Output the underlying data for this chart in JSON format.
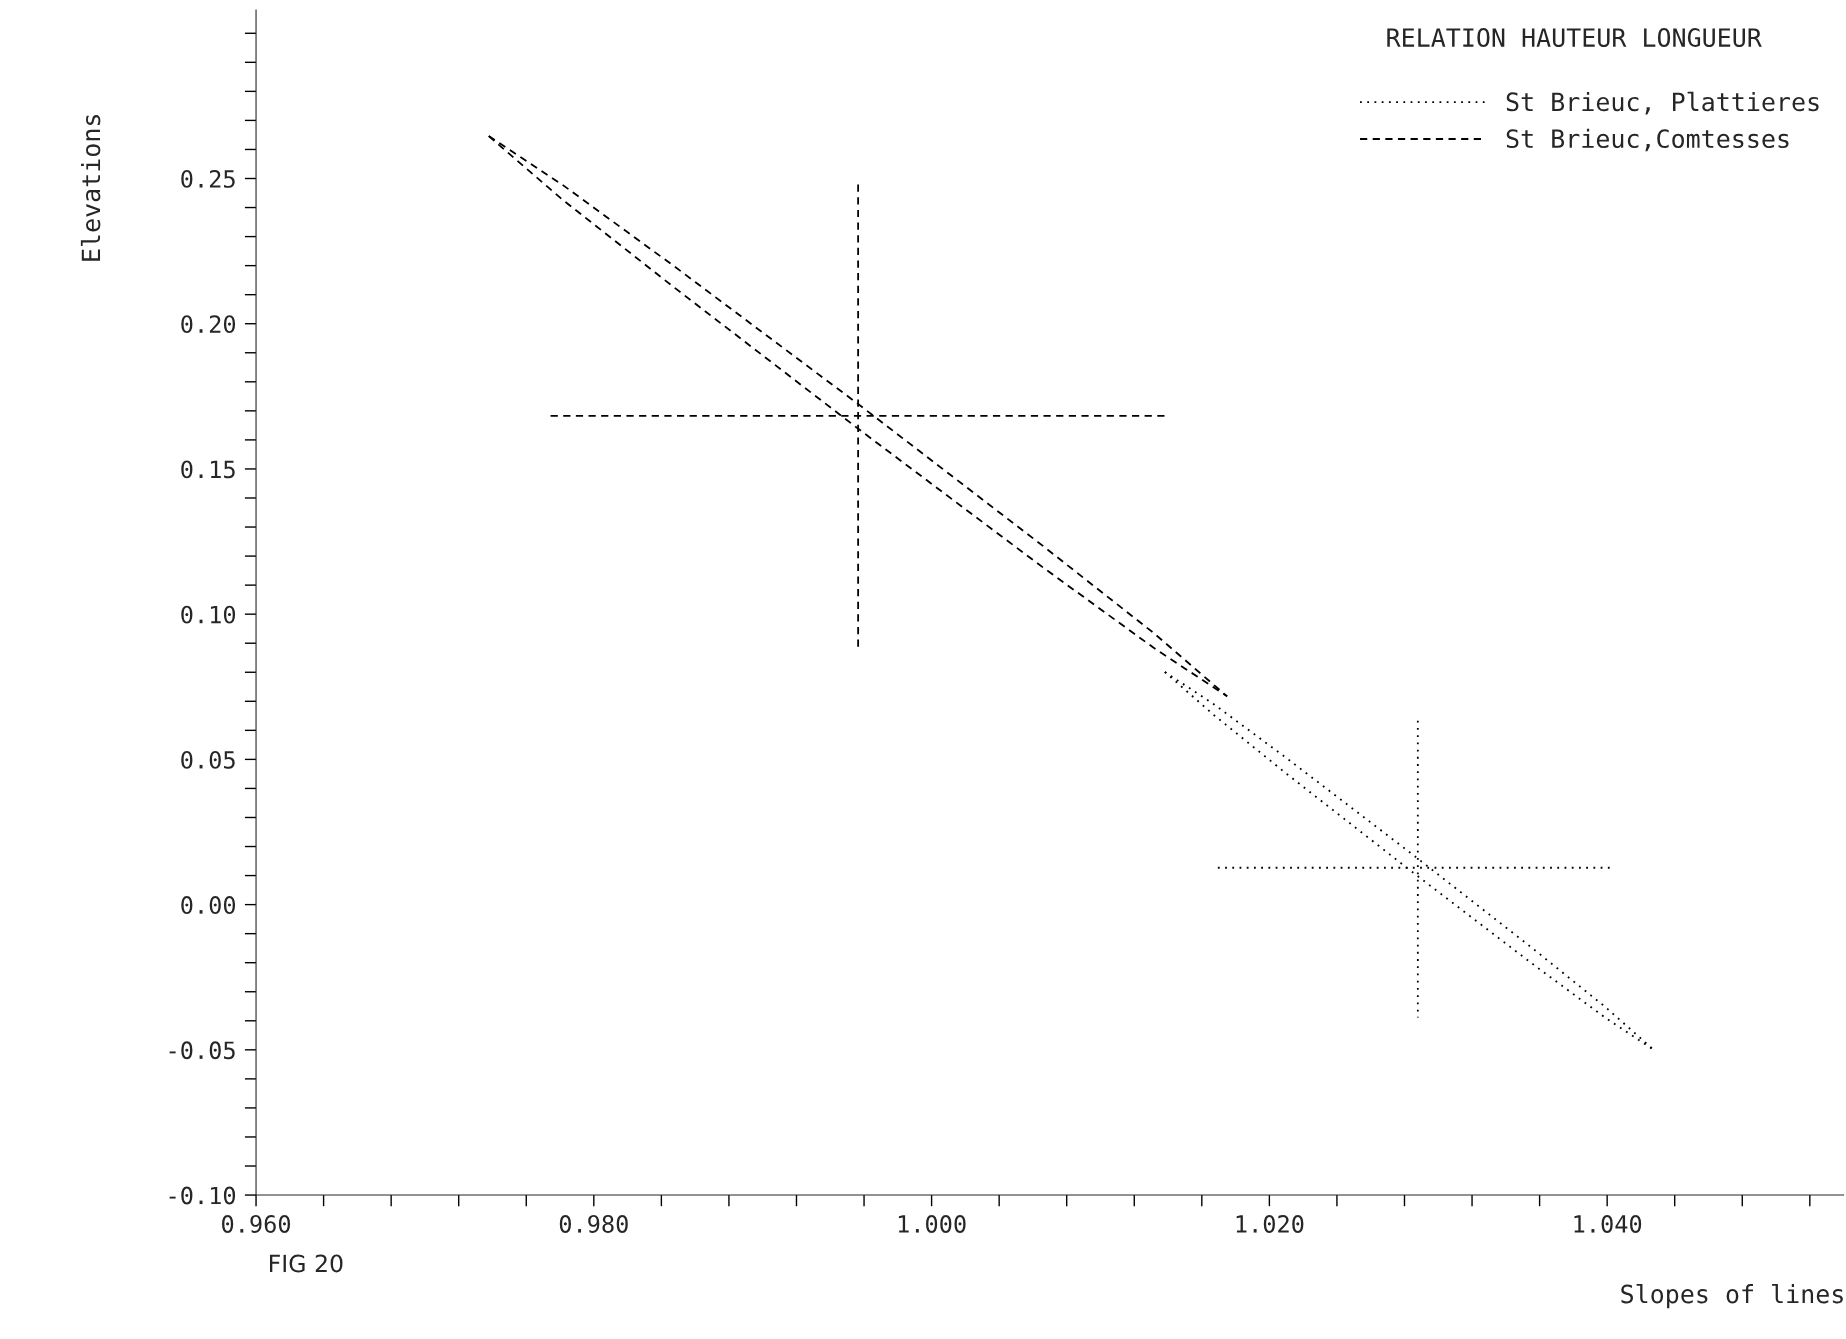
{
  "chart_data": {
    "type": "line",
    "title": "RELATION HAUTEUR LONGUEUR",
    "xlabel": "Slopes of lines",
    "ylabel": "Elevations",
    "annotations": [
      "FIG 20"
    ],
    "xlim": [
      0.96,
      1.054
    ],
    "ylim": [
      -0.1,
      0.308
    ],
    "xticks": [
      {
        "value": 0.96,
        "label": "0.960"
      },
      {
        "value": 0.964,
        "label": null
      },
      {
        "value": 0.968,
        "label": null
      },
      {
        "value": 0.972,
        "label": null
      },
      {
        "value": 0.976,
        "label": null
      },
      {
        "value": 0.98,
        "label": "0.980"
      },
      {
        "value": 0.984,
        "label": null
      },
      {
        "value": 0.988,
        "label": null
      },
      {
        "value": 0.992,
        "label": null
      },
      {
        "value": 0.996,
        "label": null
      },
      {
        "value": 1.0,
        "label": "1.000"
      },
      {
        "value": 1.004,
        "label": null
      },
      {
        "value": 1.008,
        "label": null
      },
      {
        "value": 1.012,
        "label": null
      },
      {
        "value": 1.016,
        "label": null
      },
      {
        "value": 1.02,
        "label": "1.020"
      },
      {
        "value": 1.024,
        "label": null
      },
      {
        "value": 1.028,
        "label": null
      },
      {
        "value": 1.032,
        "label": null
      },
      {
        "value": 1.036,
        "label": null
      },
      {
        "value": 1.04,
        "label": "1.040"
      },
      {
        "value": 1.044,
        "label": null
      },
      {
        "value": 1.048,
        "label": null
      },
      {
        "value": 1.052,
        "label": null
      }
    ],
    "yticks": [
      {
        "value": -0.1,
        "label": "-0.10"
      },
      {
        "value": -0.09,
        "label": null
      },
      {
        "value": -0.08,
        "label": null
      },
      {
        "value": -0.07,
        "label": null
      },
      {
        "value": -0.06,
        "label": null
      },
      {
        "value": -0.05,
        "label": "-0.05"
      },
      {
        "value": -0.04,
        "label": null
      },
      {
        "value": -0.03,
        "label": null
      },
      {
        "value": -0.02,
        "label": null
      },
      {
        "value": -0.01,
        "label": null
      },
      {
        "value": 0.0,
        "label": "0.00"
      },
      {
        "value": 0.01,
        "label": null
      },
      {
        "value": 0.02,
        "label": null
      },
      {
        "value": 0.03,
        "label": null
      },
      {
        "value": 0.04,
        "label": null
      },
      {
        "value": 0.05,
        "label": "0.05"
      },
      {
        "value": 0.06,
        "label": null
      },
      {
        "value": 0.07,
        "label": null
      },
      {
        "value": 0.08,
        "label": null
      },
      {
        "value": 0.09,
        "label": null
      },
      {
        "value": 0.1,
        "label": "0.10"
      },
      {
        "value": 0.11,
        "label": null
      },
      {
        "value": 0.12,
        "label": null
      },
      {
        "value": 0.13,
        "label": null
      },
      {
        "value": 0.14,
        "label": null
      },
      {
        "value": 0.15,
        "label": "0.15"
      },
      {
        "value": 0.16,
        "label": null
      },
      {
        "value": 0.17,
        "label": null
      },
      {
        "value": 0.18,
        "label": null
      },
      {
        "value": 0.19,
        "label": null
      },
      {
        "value": 0.2,
        "label": "0.20"
      },
      {
        "value": 0.21,
        "label": null
      },
      {
        "value": 0.22,
        "label": null
      },
      {
        "value": 0.23,
        "label": null
      },
      {
        "value": 0.24,
        "label": null
      },
      {
        "value": 0.25,
        "label": "0.25"
      },
      {
        "value": 0.26,
        "label": null
      },
      {
        "value": 0.27,
        "label": null
      },
      {
        "value": 0.28,
        "label": null
      },
      {
        "value": 0.29,
        "label": null
      },
      {
        "value": 0.3,
        "label": null
      }
    ],
    "legend": "top right",
    "series": [
      {
        "name": "St Brieuc, Plattieres",
        "color": "#000000",
        "line_style": "dotted",
        "x": [
          1.01381,
          1.01671,
          1.02105,
          1.02829,
          1.03553,
          1.03988,
          1.04278
        ],
        "values": [
          0.0801,
          0.069,
          0.0503,
          0.0181,
          -0.0148,
          -0.0352,
          -0.0501
        ]
      },
      {
        "color": "#000000",
        "line_style": "dotted",
        "x": [
          1.01381,
          1.01671,
          1.02105,
          1.02829,
          1.03553,
          1.03988,
          1.04278
        ],
        "values": [
          0.0801,
          0.0653,
          0.0449,
          0.012,
          -0.0202,
          -0.0389,
          -0.0501
        ]
      },
      {
        "color": "#000000",
        "line_style": "dotted",
        "x": [
          1.01695,
          1.04043
        ],
        "values": [
          0.0127,
          0.0127
        ]
      },
      {
        "color": "#000000",
        "line_style": "dotted",
        "x": [
          1.02879,
          1.02879
        ],
        "values": [
          0.0633,
          -0.0389
        ]
      },
      {
        "name": "St Brieuc,Comtesses",
        "color": "#000000",
        "line_style": "dashed",
        "x": [
          0.97378,
          0.97815,
          0.98471,
          0.99564,
          1.00657,
          1.01313,
          1.0175
        ],
        "values": [
          0.2646,
          0.2478,
          0.22,
          0.1724,
          0.1236,
          0.0936,
          0.0717
        ]
      },
      {
        "color": "#000000",
        "line_style": "dashed",
        "x": [
          0.97378,
          0.97815,
          0.98471,
          0.99564,
          1.00657,
          1.01313,
          1.0175
        ],
        "values": [
          0.2646,
          0.2427,
          0.2127,
          0.1639,
          0.1162,
          0.0885,
          0.0717
        ]
      },
      {
        "color": "#000000",
        "line_style": "dashed",
        "x": [
          0.97744,
          1.01381
        ],
        "values": [
          0.1683,
          0.1683
        ]
      },
      {
        "color": "#000000",
        "line_style": "dashed",
        "x": [
          0.99565,
          0.99565
        ],
        "values": [
          0.2479,
          0.0882
        ]
      }
    ]
  }
}
